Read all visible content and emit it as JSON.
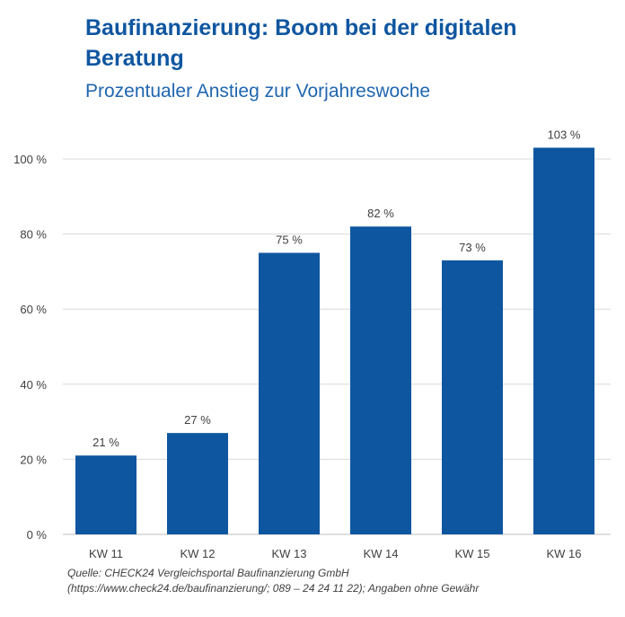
{
  "chart_data": {
    "type": "bar",
    "title": "Baufinanzierung: Boom bei der digitalen Beratung",
    "subtitle": "Prozentualer Anstieg zur Vorjahreswoche",
    "categories": [
      "KW 11",
      "KW 12",
      "KW 13",
      "KW 14",
      "KW 15",
      "KW 16"
    ],
    "values": [
      21,
      27,
      75,
      82,
      73,
      103
    ],
    "data_labels": [
      "21 %",
      "27 %",
      "75 %",
      "82 %",
      "73 %",
      "103 %"
    ],
    "y_ticks": [
      0,
      20,
      40,
      60,
      80,
      100
    ],
    "y_tick_labels": [
      "0 %",
      "20 %",
      "40 %",
      "60 %",
      "80 %",
      "100 %"
    ],
    "ylim": [
      0,
      110
    ],
    "grid": true,
    "bar_color": "#0f56a0",
    "xlabel": "",
    "ylabel": ""
  },
  "source": {
    "line1": "Quelle: CHECK24 Vergleichsportal Baufinanzierung GmbH",
    "line2": "(https://www.check24.de/baufinanzierung/; 089 – 24 24 11 22); Angaben ohne Gewähr"
  }
}
